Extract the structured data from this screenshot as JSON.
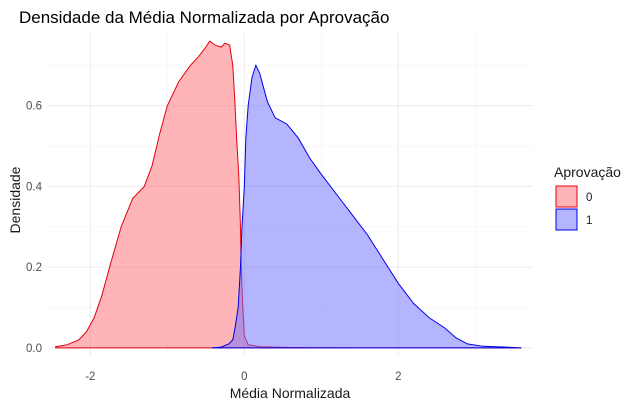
{
  "chart_data": {
    "type": "area",
    "title": "Densidade da Média Normalizada por Aprovação",
    "xlabel": "Média Normalizada",
    "ylabel": "Densidade",
    "xlim": [
      -2.55,
      3.75
    ],
    "ylim": [
      -0.02,
      0.78
    ],
    "x_ticks": [
      -2,
      0,
      2
    ],
    "x_tick_labels": [
      "-2",
      "0",
      "2"
    ],
    "y_ticks": [
      0.0,
      0.2,
      0.4,
      0.6
    ],
    "y_tick_labels": [
      "0.0",
      "0.2",
      "0.4",
      "0.6"
    ],
    "grid": true,
    "legend": {
      "title": "Aprovação",
      "position": "right"
    },
    "series": [
      {
        "name": "0",
        "fill": "#ff6b70",
        "stroke": "#e3000f",
        "points": [
          [
            -2.45,
            0.003
          ],
          [
            -2.3,
            0.008
          ],
          [
            -2.15,
            0.02
          ],
          [
            -2.05,
            0.04
          ],
          [
            -1.95,
            0.075
          ],
          [
            -1.85,
            0.13
          ],
          [
            -1.75,
            0.2
          ],
          [
            -1.6,
            0.3
          ],
          [
            -1.45,
            0.37
          ],
          [
            -1.3,
            0.4
          ],
          [
            -1.2,
            0.45
          ],
          [
            -1.1,
            0.53
          ],
          [
            -1.0,
            0.6
          ],
          [
            -0.85,
            0.66
          ],
          [
            -0.7,
            0.7
          ],
          [
            -0.6,
            0.72
          ],
          [
            -0.5,
            0.745
          ],
          [
            -0.45,
            0.76
          ],
          [
            -0.38,
            0.75
          ],
          [
            -0.3,
            0.745
          ],
          [
            -0.25,
            0.755
          ],
          [
            -0.19,
            0.75
          ],
          [
            -0.15,
            0.7
          ],
          [
            -0.12,
            0.6
          ],
          [
            -0.1,
            0.52
          ],
          [
            -0.07,
            0.42
          ],
          [
            -0.05,
            0.3
          ],
          [
            -0.04,
            0.2
          ],
          [
            -0.02,
            0.1
          ],
          [
            0.0,
            0.03
          ],
          [
            0.05,
            0.008
          ],
          [
            0.2,
            0.003
          ],
          [
            0.6,
            0.001
          ],
          [
            1.5,
            0.0
          ],
          [
            3.6,
            0.0
          ]
        ]
      },
      {
        "name": "1",
        "fill": "#6b6bff",
        "stroke": "#0000e6",
        "points": [
          [
            -0.42,
            0.0
          ],
          [
            -0.3,
            0.002
          ],
          [
            -0.2,
            0.01
          ],
          [
            -0.15,
            0.02
          ],
          [
            -0.12,
            0.05
          ],
          [
            -0.08,
            0.1
          ],
          [
            -0.05,
            0.2
          ],
          [
            -0.03,
            0.3
          ],
          [
            0.0,
            0.4
          ],
          [
            0.02,
            0.52
          ],
          [
            0.05,
            0.6
          ],
          [
            0.1,
            0.67
          ],
          [
            0.15,
            0.7
          ],
          [
            0.2,
            0.68
          ],
          [
            0.3,
            0.61
          ],
          [
            0.4,
            0.57
          ],
          [
            0.55,
            0.555
          ],
          [
            0.7,
            0.52
          ],
          [
            0.85,
            0.47
          ],
          [
            1.0,
            0.43
          ],
          [
            1.2,
            0.38
          ],
          [
            1.4,
            0.33
          ],
          [
            1.6,
            0.28
          ],
          [
            1.8,
            0.22
          ],
          [
            2.0,
            0.16
          ],
          [
            2.2,
            0.11
          ],
          [
            2.4,
            0.075
          ],
          [
            2.6,
            0.05
          ],
          [
            2.75,
            0.025
          ],
          [
            2.9,
            0.01
          ],
          [
            3.1,
            0.004
          ],
          [
            3.4,
            0.002
          ],
          [
            3.6,
            0.0
          ]
        ]
      }
    ]
  }
}
